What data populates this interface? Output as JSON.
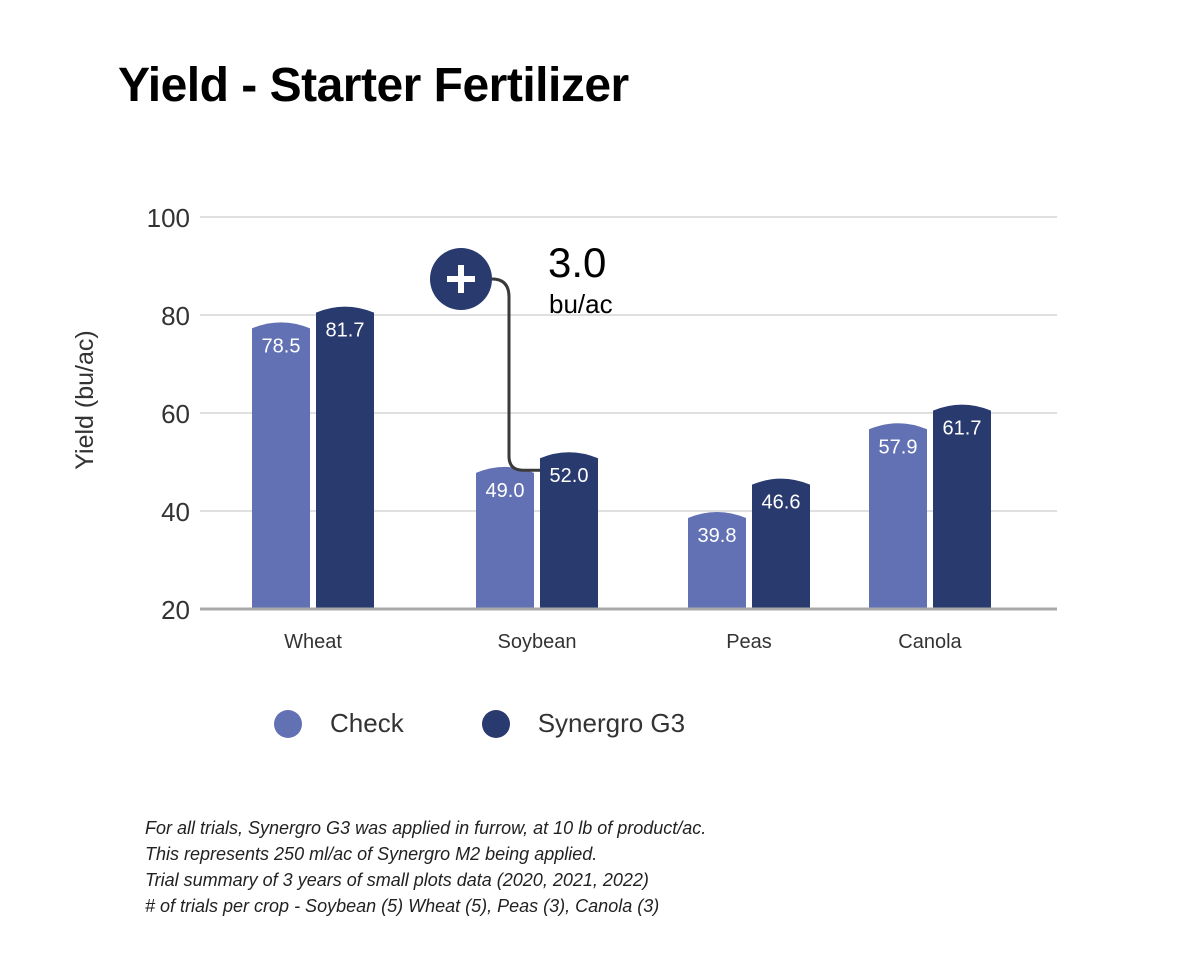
{
  "chart_data": {
    "type": "bar",
    "title": "Yield - Starter Fertilizer",
    "ylabel": "Yield (bu/ac)",
    "xlabel": "",
    "ylim": [
      20,
      100
    ],
    "yticks": [
      20,
      40,
      60,
      80,
      100
    ],
    "grid": true,
    "legend_position": "bottom",
    "categories": [
      "Wheat",
      "Soybean",
      "Peas",
      "Canola"
    ],
    "series": [
      {
        "name": "Check",
        "color": "#6271b3",
        "values": [
          78.5,
          49.0,
          39.8,
          57.9
        ]
      },
      {
        "name": "Synergro G3",
        "color": "#283a6e",
        "values": [
          81.7,
          52.0,
          46.6,
          61.7
        ]
      }
    ],
    "annotation": {
      "icon": "plus-circle-icon",
      "value": "3.0",
      "unit": "bu/ac",
      "category": "Soybean"
    }
  },
  "footnotes": [
    "For all trials, Synergro G3 was applied in furrow, at 10 lb of product/ac.",
    "This represents 250 ml/ac of Synergro M2 being applied.",
    "Trial summary of 3 years of small plots data (2020, 2021, 2022)",
    "# of trials per crop - Soybean (5) Wheat (5), Peas (3), Canola (3)"
  ]
}
